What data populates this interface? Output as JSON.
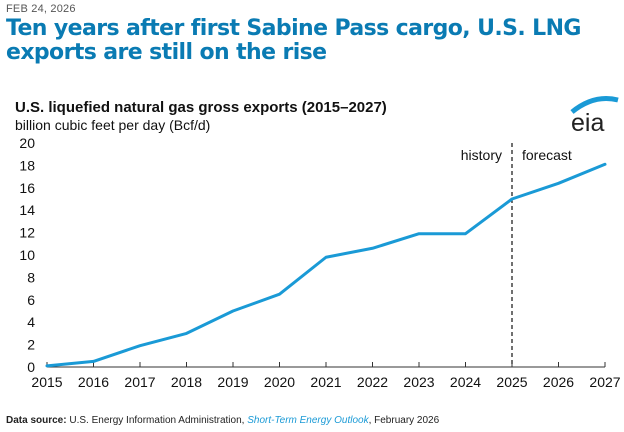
{
  "header": {
    "date": "FEB 24, 2026",
    "title": "Ten years after first Sabine Pass cargo, U.S. LNG exports are still on the rise"
  },
  "logo": {
    "text": "eia"
  },
  "source": {
    "label": "Data source:",
    "text": " U.S. Energy Information Administration, ",
    "publication": "Short-Term Energy Outlook",
    "date": ", February 2026"
  },
  "colors": {
    "title": "#0a7bb3",
    "line": "#1a9ad6"
  },
  "chart_data": {
    "type": "line",
    "title": "U.S. liquefied natural gas gross exports (2015–2027)",
    "ylabel": "billion cubic feet per day (Bcf/d)",
    "xlabel": "",
    "x": [
      2015,
      2016,
      2017,
      2018,
      2019,
      2020,
      2021,
      2022,
      2023,
      2024,
      2025,
      2026,
      2027
    ],
    "series": [
      {
        "name": "LNG gross exports",
        "values": [
          0.1,
          0.5,
          1.9,
          3.0,
          5.0,
          6.5,
          9.8,
          10.6,
          11.9,
          11.9,
          15.0,
          16.4,
          18.1
        ]
      }
    ],
    "ylim": [
      0,
      20
    ],
    "yticks": [
      0,
      2,
      4,
      6,
      8,
      10,
      12,
      14,
      16,
      18,
      20
    ],
    "xlim": [
      2015,
      2027
    ],
    "grid": false,
    "annotations": [
      {
        "text": "history",
        "x": 2025,
        "side": "left"
      },
      {
        "text": "forecast",
        "x": 2025,
        "side": "right"
      }
    ],
    "divider_x": 2025
  }
}
